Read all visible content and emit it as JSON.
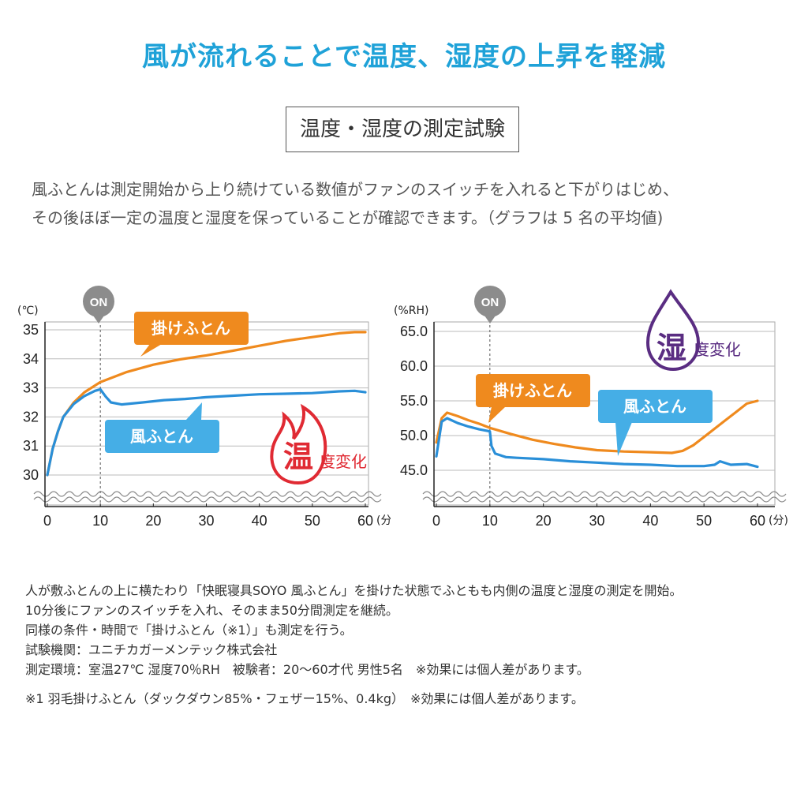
{
  "header": {
    "title": "風が流れることで温度、湿度の上昇を軽減",
    "subtitle": "温度・湿度の測定試験"
  },
  "intro": [
    "風ふとんは測定開始から上り続けている数値がファンのスイッチを入れると下がりはじめ、",
    "その後ほぼ一定の温度と湿度を保っていることが確認できます。（グラフは 5 名の平均値)"
  ],
  "chart_data": [
    {
      "type": "line",
      "title": "",
      "ylabel": "(℃)",
      "xlabel": "(分)",
      "xlim": [
        0,
        60
      ],
      "ylim": [
        30,
        35
      ],
      "xticks": [
        "0",
        "10",
        "20",
        "30",
        "40",
        "50",
        "60"
      ],
      "yticks": [
        "35",
        "34",
        "33",
        "32",
        "31",
        "30"
      ],
      "on_label": "ON",
      "on_x": 10,
      "badge": {
        "main": "温",
        "sub": "度変化",
        "color": "#e02a33"
      },
      "series": [
        {
          "name": "掛けふとん",
          "color": "#ef8a1e",
          "x": [
            0,
            1,
            2,
            3,
            5,
            7,
            10,
            15,
            20,
            25,
            30,
            35,
            40,
            45,
            50,
            55,
            58,
            60
          ],
          "y": [
            30.0,
            30.9,
            31.5,
            32.0,
            32.5,
            32.85,
            33.2,
            33.55,
            33.8,
            33.98,
            34.12,
            34.28,
            34.45,
            34.62,
            34.75,
            34.88,
            34.92,
            34.92
          ]
        },
        {
          "name": "風ふとん",
          "color": "#2a8fd8",
          "x": [
            0,
            1,
            2,
            3,
            5,
            7,
            9,
            10,
            11,
            12,
            14,
            18,
            22,
            26,
            30,
            35,
            40,
            45,
            50,
            55,
            58,
            60
          ],
          "y": [
            30.0,
            30.9,
            31.5,
            32.0,
            32.45,
            32.72,
            32.9,
            32.95,
            32.7,
            32.5,
            32.43,
            32.5,
            32.58,
            32.62,
            32.68,
            32.73,
            32.78,
            32.8,
            32.82,
            32.88,
            32.9,
            32.85
          ]
        }
      ]
    },
    {
      "type": "line",
      "title": "",
      "ylabel": "(%RH)",
      "xlabel": "(分)",
      "xlim": [
        0,
        60
      ],
      "ylim": [
        45,
        65
      ],
      "xticks": [
        "0",
        "10",
        "20",
        "30",
        "40",
        "50",
        "60"
      ],
      "yticks": [
        "65.0",
        "60.0",
        "55.0",
        "50.0",
        "45.0"
      ],
      "on_label": "ON",
      "on_x": 10,
      "badge": {
        "main": "湿",
        "sub": "度変化",
        "color": "#5a2d82"
      },
      "series": [
        {
          "name": "掛けふとん",
          "color": "#ef8a1e",
          "x": [
            0,
            1,
            2,
            4,
            6,
            8,
            10,
            14,
            18,
            22,
            26,
            30,
            35,
            40,
            44,
            46,
            48,
            50,
            52,
            54,
            56,
            58,
            60
          ],
          "y": [
            49.0,
            52.5,
            53.3,
            52.8,
            52.2,
            51.7,
            51.1,
            50.2,
            49.4,
            48.8,
            48.3,
            47.9,
            47.7,
            47.6,
            47.5,
            47.8,
            48.6,
            49.8,
            51.0,
            52.2,
            53.4,
            54.6,
            55.0
          ]
        },
        {
          "name": "風ふとん",
          "color": "#2a8fd8",
          "x": [
            0,
            1,
            2,
            4,
            6,
            8,
            10,
            10.3,
            11,
            13,
            15,
            20,
            25,
            30,
            35,
            40,
            45,
            50,
            52,
            53,
            55,
            58,
            60
          ],
          "y": [
            47.0,
            52.0,
            52.5,
            51.8,
            51.3,
            50.9,
            50.6,
            48.5,
            47.4,
            46.9,
            46.8,
            46.6,
            46.3,
            46.1,
            45.9,
            45.8,
            45.6,
            45.6,
            45.8,
            46.3,
            45.8,
            45.9,
            45.5
          ]
        }
      ]
    }
  ],
  "notes": [
    "人が敷ふとんの上に横たわり「快眠寝具SOYO 風ふとん」を掛けた状態でふともも内側の温度と湿度の測定を開始。",
    "10分後にファンのスイッチを入れ、そのまま50分間測定を継続。",
    "同様の条件・時間で「掛けふとん（※1）」も測定を行う。",
    "試験機関：ユニチカガーメンテック株式会社",
    "測定環境：室温27℃ 湿度70％RH　被験者：20〜60才代 男性5名　※効果には個人差があります。",
    "※1 羽毛掛けふとん（ダックダウン85%・フェザー15%、0.4kg）　※効果には個人差があります。"
  ],
  "colors": {
    "title_blue": "#1fa2d8",
    "orange": "#ef8a1e",
    "blue": "#2a8fd8",
    "callout_blue": "#45aee6",
    "gray_on": "#8c8c8c",
    "temp_red": "#e02a33",
    "hum_purple": "#5a2d82"
  }
}
